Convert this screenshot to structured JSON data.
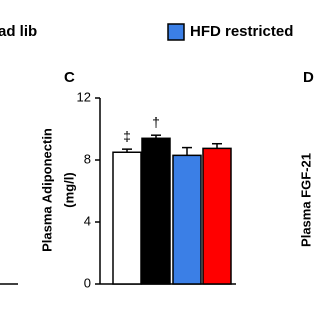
{
  "legend": [
    {
      "label": "ad lib"
    },
    {
      "label": "HFD restricted",
      "color": "#3b7fe6"
    }
  ],
  "chart_data": {
    "type": "bar",
    "panel": "C",
    "ylabel": [
      "Plasma Adiponectin",
      "(mg/l)"
    ],
    "values": [
      8.5,
      9.4,
      8.3,
      8.75
    ],
    "errors": [
      0.2,
      0.2,
      0.5,
      0.3
    ],
    "colors": [
      "#ffffff",
      "#000000",
      "#3b7fe6",
      "#ff0000"
    ],
    "bar_annotations": [
      "‡",
      "†",
      null,
      null
    ],
    "ylim": [
      0,
      12
    ],
    "yticks": [
      0,
      4,
      8,
      12
    ]
  },
  "next_panel": {
    "panel": "D",
    "ylabel": "Plasma FGF-21"
  }
}
